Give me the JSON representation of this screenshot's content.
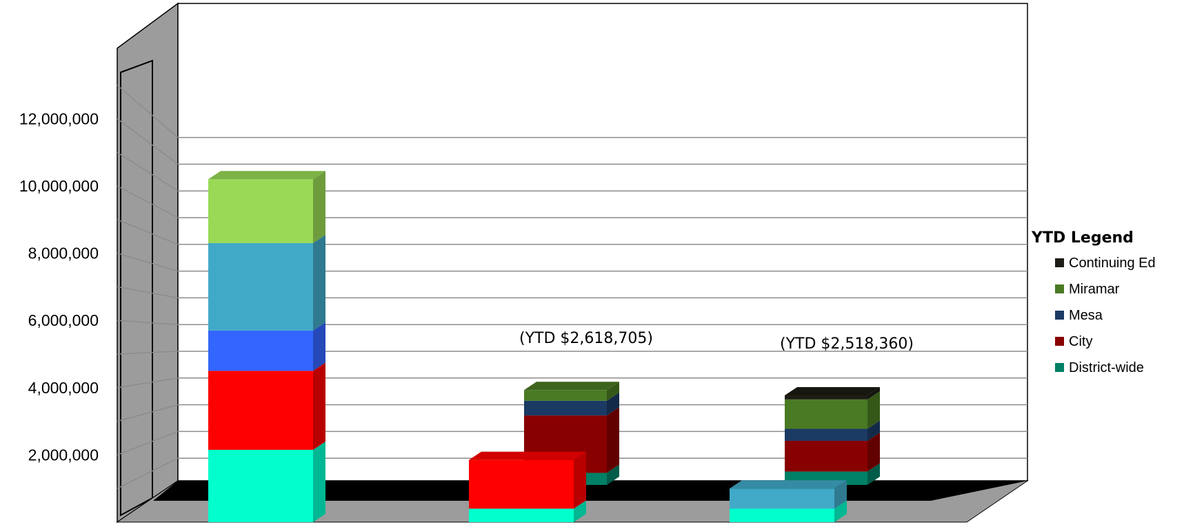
{
  "chart_data": {
    "type": "bar",
    "stacked": true,
    "three_d": true,
    "ylim": [
      0,
      13000000
    ],
    "y_ticks": [
      {
        "value": 2000000,
        "label": "2,000,000"
      },
      {
        "value": 4000000,
        "label": "4,000,000"
      },
      {
        "value": 6000000,
        "label": "6,000,000"
      },
      {
        "value": 8000000,
        "label": "8,000,000"
      },
      {
        "value": 10000000,
        "label": "10,000,000"
      },
      {
        "value": 12000000,
        "label": "12,000,000"
      }
    ],
    "gridlines": true,
    "groups": [
      {
        "annotation": "",
        "stacks": [
          {
            "depth": "front",
            "segments": [
              {
                "value": 2150000,
                "color": "#00FFCC"
              },
              {
                "value": 2350000,
                "color": "#FF0000"
              },
              {
                "value": 1200000,
                "color": "#3366FF"
              },
              {
                "value": 2600000,
                "color": "#41A9C8"
              },
              {
                "value": 1900000,
                "color": "#99D955"
              }
            ]
          }
        ]
      },
      {
        "annotation": "(YTD $2,618,705)",
        "stacks": [
          {
            "depth": "back",
            "segments": [
              {
                "value": 450000,
                "color": "#008066"
              },
              {
                "value": 2150000,
                "color": "#880000"
              },
              {
                "value": 550000,
                "color": "#1B3A64"
              },
              {
                "value": 400000,
                "color": "#4A7A23"
              }
            ]
          },
          {
            "depth": "front",
            "segments": [
              {
                "value": 400000,
                "color": "#00FFCC"
              },
              {
                "value": 1450000,
                "color": "#FF0000"
              }
            ]
          }
        ]
      },
      {
        "annotation": "(YTD $2,518,360)",
        "stacks": [
          {
            "depth": "back",
            "segments": [
              {
                "value": 500000,
                "color": "#008066"
              },
              {
                "value": 1150000,
                "color": "#880000"
              },
              {
                "value": 450000,
                "color": "#1B3A64"
              },
              {
                "value": 1100000,
                "color": "#4A7A23"
              },
              {
                "value": 150000,
                "color": "#1C1C14"
              }
            ]
          },
          {
            "depth": "front",
            "segments": [
              {
                "value": 400000,
                "color": "#00FFCC"
              },
              {
                "value": 600000,
                "color": "#41A9C8"
              }
            ]
          }
        ]
      }
    ],
    "legend": {
      "title": "YTD Legend",
      "placement": "right",
      "entries": [
        {
          "name": "Continuing Ed",
          "color": "#1C1C14"
        },
        {
          "name": "Miramar",
          "color": "#4A7A23"
        },
        {
          "name": "Mesa",
          "color": "#1B3A64"
        },
        {
          "name": "City",
          "color": "#880000"
        },
        {
          "name": "District-wide",
          "color": "#008066"
        }
      ]
    }
  }
}
